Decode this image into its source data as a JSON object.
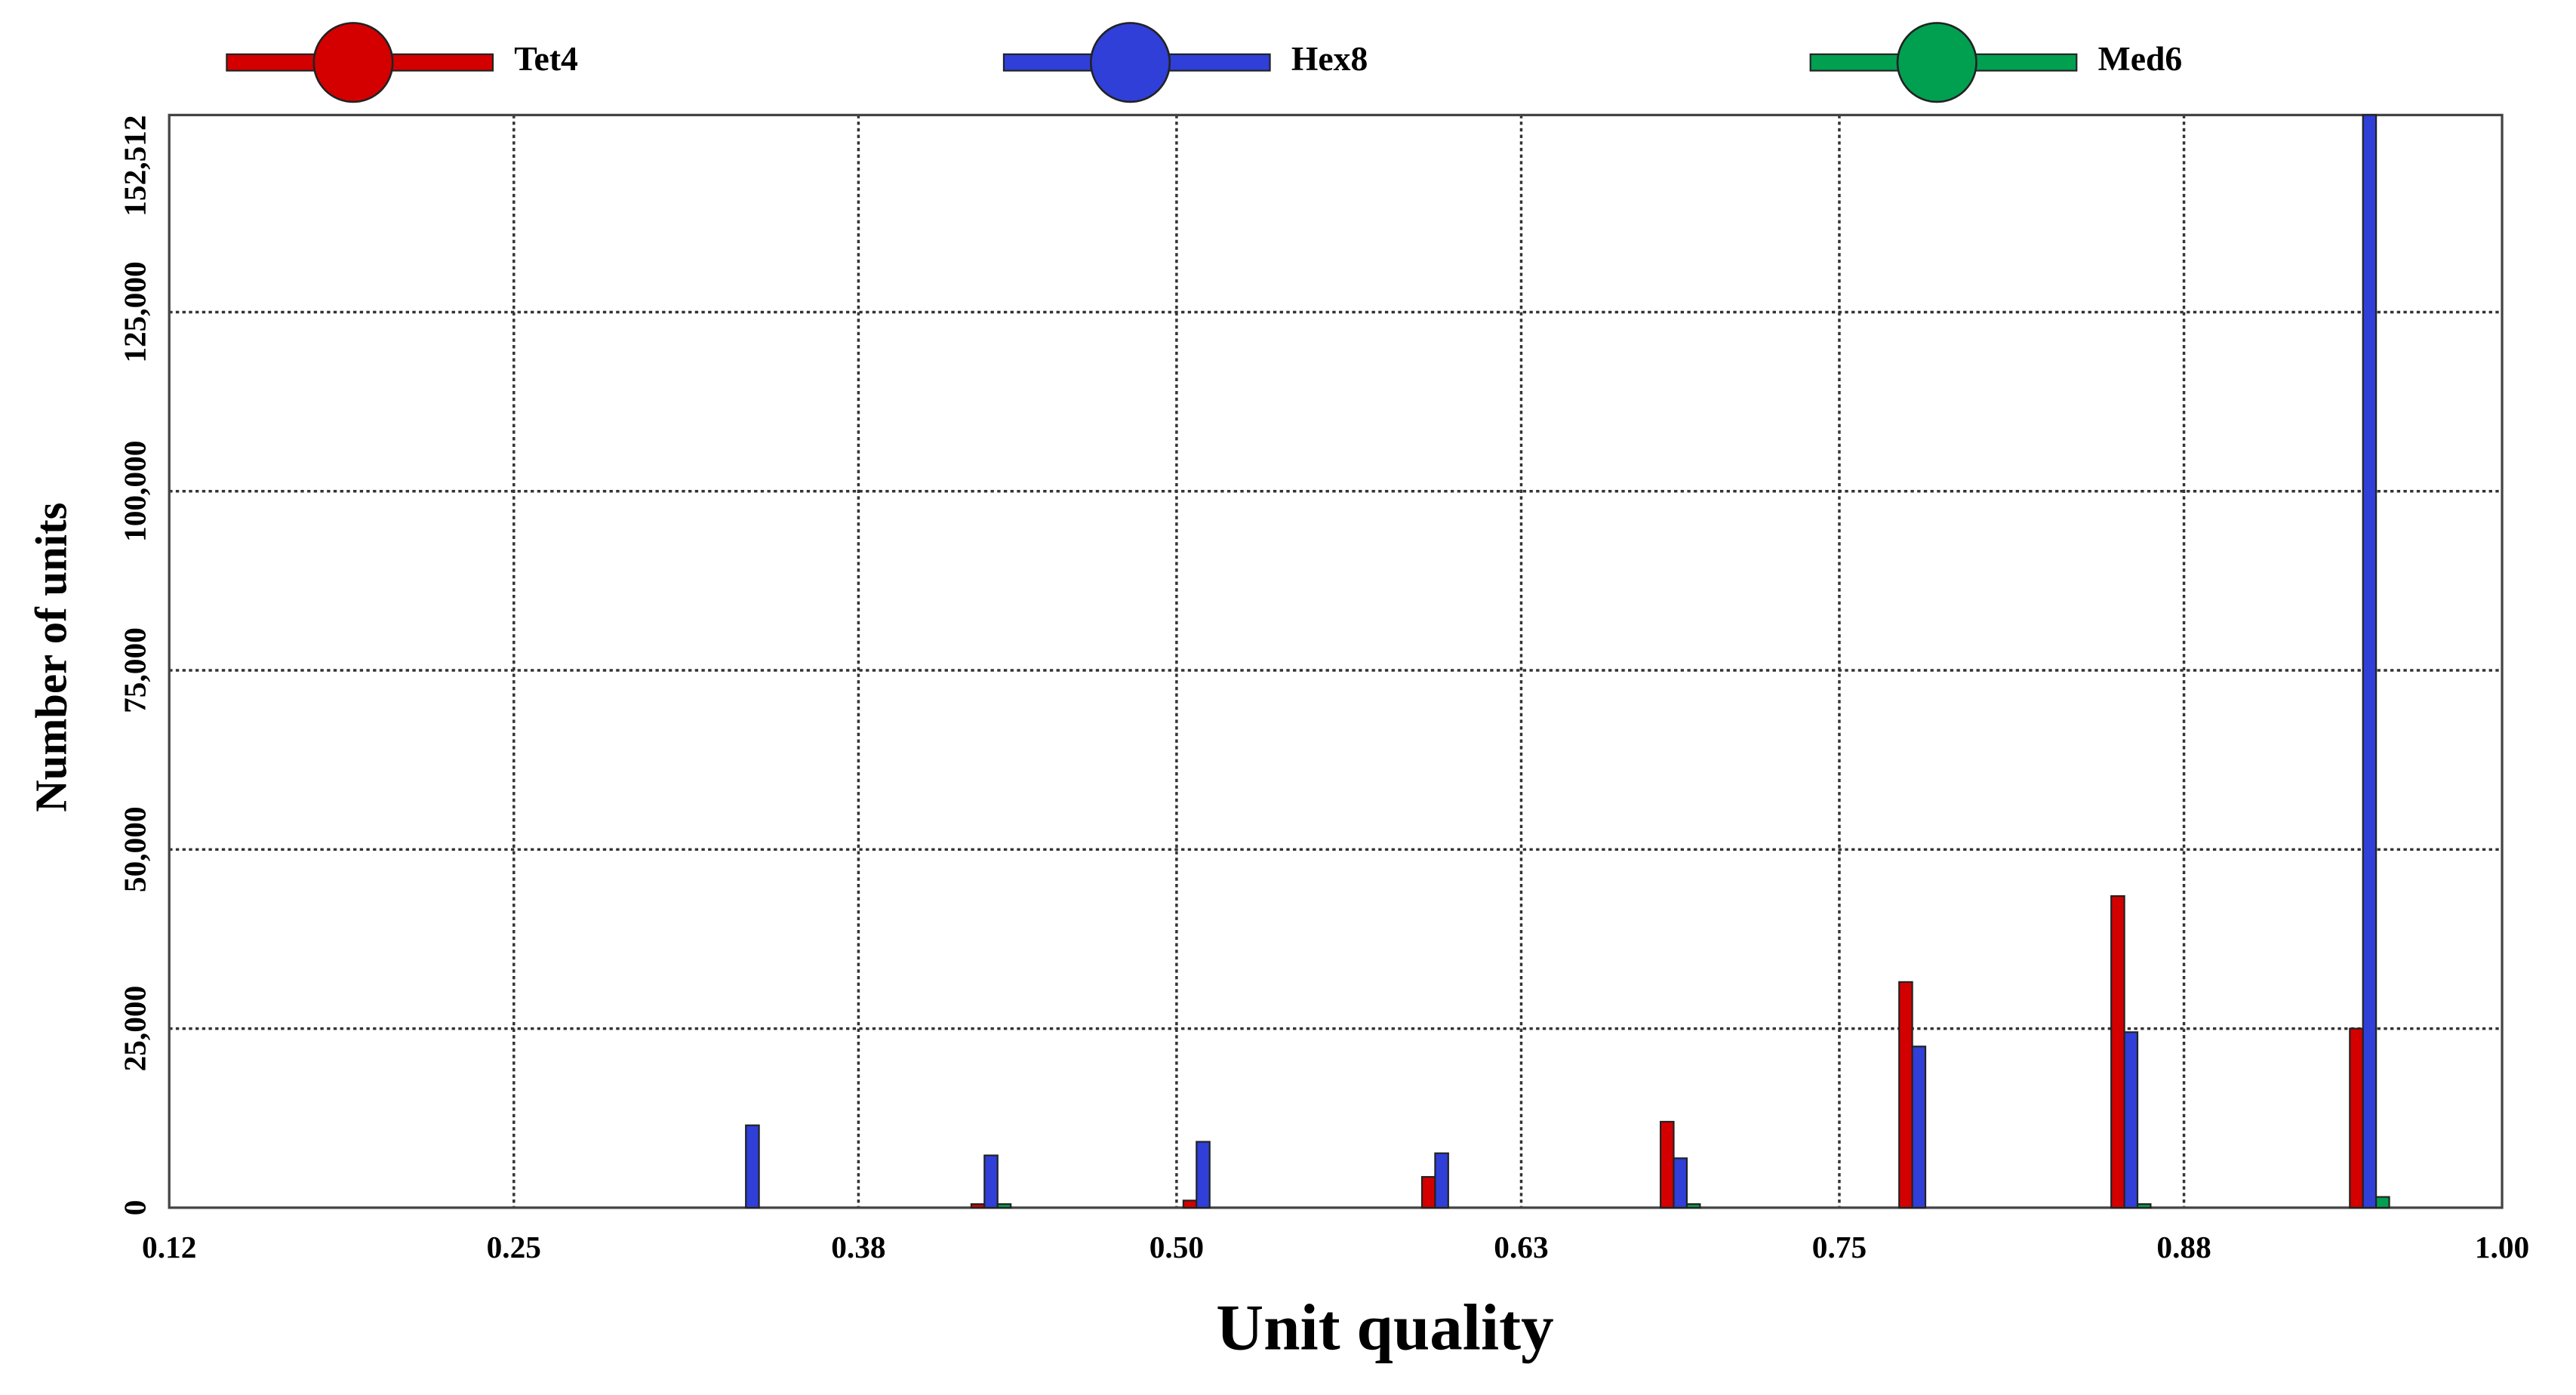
{
  "chart_data": {
    "type": "bar",
    "x_label": "Unit quality",
    "y_label": "Number of units",
    "x": [
      0.16,
      0.25,
      0.34,
      0.43,
      0.51,
      0.6,
      0.69,
      0.78,
      0.86,
      0.95
    ],
    "series": [
      {
        "name": "Tet4",
        "color": "#d40000",
        "values": [
          0,
          0,
          0,
          500,
          1000,
          4300,
          12000,
          31500,
          43500,
          25000
        ]
      },
      {
        "name": "Hex8",
        "color": "#2f3fd8",
        "values": [
          0,
          0,
          11500,
          7300,
          9200,
          7600,
          6900,
          22500,
          24500,
          152512
        ]
      },
      {
        "name": "Med6",
        "color": "#00a050",
        "values": [
          0,
          0,
          0,
          500,
          0,
          0,
          500,
          0,
          500,
          1500
        ]
      }
    ],
    "xlim": [
      0.12,
      1
    ],
    "xticks": [
      0.12,
      0.25,
      0.38,
      {
        "value": 0.5,
        "label": "0.50"
      },
      0.63,
      0.75,
      0.88,
      {
        "value": 1,
        "label": "1.00"
      }
    ],
    "ylim": [
      0,
      152512
    ],
    "yticks": [
      0,
      {
        "value": 25000,
        "label": "25,000"
      },
      {
        "value": 50000,
        "label": "50,000"
      },
      {
        "value": 75000,
        "label": "75,000"
      },
      {
        "value": 100000,
        "label": "100,000"
      },
      {
        "value": 125000,
        "label": "125,000"
      },
      {
        "value": 152512,
        "label": "152,512"
      }
    ],
    "grid": true,
    "legend": "top"
  }
}
